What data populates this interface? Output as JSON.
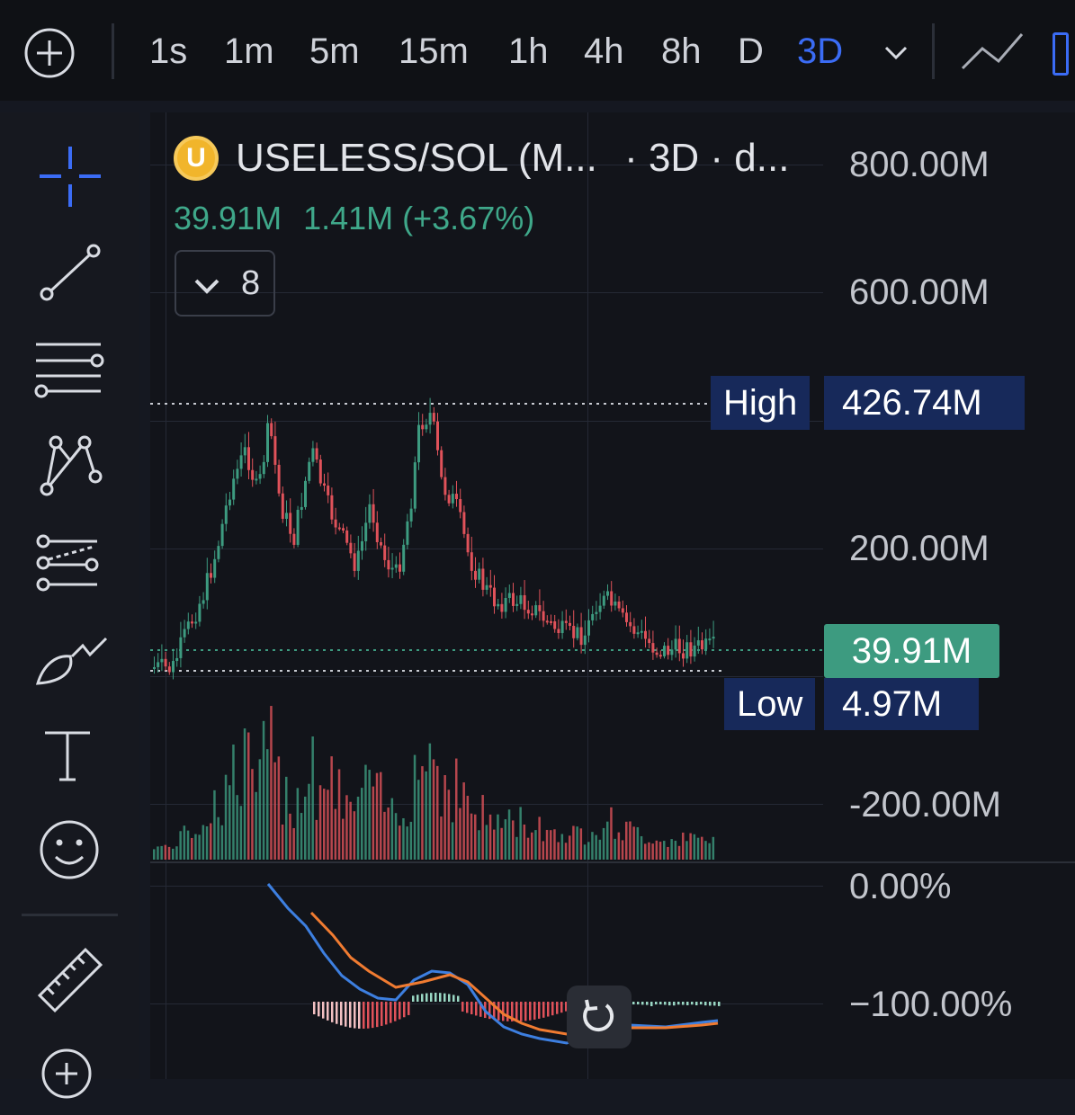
{
  "toolbar": {
    "timeframes": [
      "1s",
      "1m",
      "5m",
      "15m",
      "1h",
      "4h",
      "8h",
      "D",
      "3D"
    ],
    "active_timeframe": "3D",
    "icons": [
      "plus-circle-icon",
      "chevron-down-icon",
      "line-chart-icon"
    ]
  },
  "sidebar": {
    "tools": [
      "crosshair-icon",
      "trend-line-icon",
      "horizontal-lines-icon",
      "pattern-icon",
      "forecast-icon",
      "brush-icon",
      "text-icon",
      "emoji-icon",
      "ruler-icon",
      "zoom-in-icon"
    ]
  },
  "header": {
    "coin_badge": "U",
    "symbol": "USELESS/SOL (M...",
    "interval": "· 3D · d...",
    "last_value": "39.91M",
    "change": "1.41M (+3.67%)",
    "indicators_count": "8"
  },
  "price_axis": {
    "labels": [
      "800.00M",
      "600.00M",
      "200.00M",
      "-200.00M"
    ],
    "high_label": "High",
    "high_value": "426.74M",
    "low_label": "Low",
    "low_value": "4.97M",
    "last_price_tag": "39.91M"
  },
  "oscillator_axis": {
    "labels": [
      "0.00%",
      "−100.00%"
    ]
  },
  "colors": {
    "up": "#3d9b80",
    "down": "#e0525a",
    "accent": "#3b6cf5",
    "macd_line": "#3d7fe0",
    "signal_line": "#f07b31",
    "tag_bg": "#17295a"
  }
}
